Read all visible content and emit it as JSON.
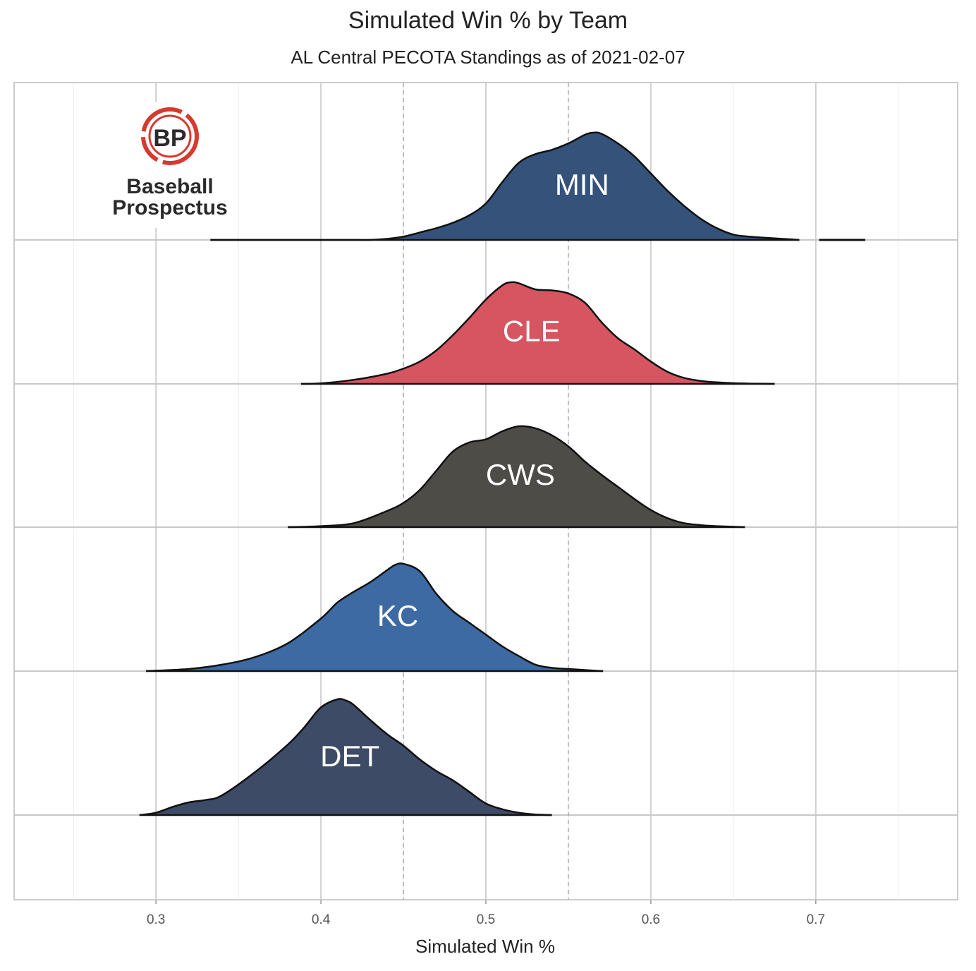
{
  "title": "Simulated Win % by Team",
  "subtitle": "AL Central PECOTA Standings as of 2021-02-07",
  "logo": {
    "mark": "BP",
    "line1": "Baseball",
    "line2": "Prospectus",
    "ring_color": "#d63a2f"
  },
  "chart_data": {
    "type": "ridgeline-density",
    "title": "Simulated Win %",
    "xlabel": "Simulated Win %",
    "ylabel": "",
    "xlim": [
      0.214,
      0.786
    ],
    "xticks": [
      0.3,
      0.4,
      0.5,
      0.6,
      0.7
    ],
    "xtick_labels": [
      "0.3",
      "0.4",
      "0.5",
      "0.6",
      "0.7"
    ],
    "reference_lines": [
      0.45,
      0.55
    ],
    "grid": true,
    "series": [
      {
        "name": "MIN",
        "color": "#34527a",
        "x": [
          0.333,
          0.35,
          0.365,
          0.38,
          0.39,
          0.4,
          0.41,
          0.42,
          0.43,
          0.44,
          0.45,
          0.46,
          0.47,
          0.48,
          0.49,
          0.5,
          0.51,
          0.52,
          0.53,
          0.54,
          0.55,
          0.56,
          0.565,
          0.57,
          0.58,
          0.59,
          0.6,
          0.61,
          0.62,
          0.63,
          0.64,
          0.65,
          0.66,
          0.67,
          0.68,
          0.69
        ],
        "density": [
          0,
          0,
          0,
          0,
          0,
          0,
          0,
          0,
          0,
          0.01,
          0.03,
          0.07,
          0.11,
          0.16,
          0.23,
          0.34,
          0.54,
          0.72,
          0.8,
          0.84,
          0.9,
          0.98,
          1.0,
          0.99,
          0.9,
          0.78,
          0.62,
          0.46,
          0.32,
          0.2,
          0.11,
          0.05,
          0.03,
          0.02,
          0.01,
          0
        ]
      },
      {
        "name": "CLE",
        "color": "#d65561",
        "x": [
          0.388,
          0.4,
          0.42,
          0.44,
          0.45,
          0.46,
          0.47,
          0.48,
          0.49,
          0.5,
          0.51,
          0.515,
          0.52,
          0.53,
          0.54,
          0.55,
          0.56,
          0.57,
          0.58,
          0.59,
          0.6,
          0.61,
          0.62,
          0.63,
          0.64,
          0.65,
          0.66,
          0.675
        ],
        "density": [
          0,
          0.005,
          0.04,
          0.1,
          0.15,
          0.22,
          0.33,
          0.48,
          0.65,
          0.83,
          0.97,
          1.0,
          0.99,
          0.93,
          0.92,
          0.89,
          0.8,
          0.61,
          0.45,
          0.34,
          0.22,
          0.12,
          0.06,
          0.03,
          0.015,
          0.007,
          0.003,
          0
        ]
      },
      {
        "name": "CWS",
        "color": "#4e4c47",
        "x": [
          0.38,
          0.4,
          0.42,
          0.44,
          0.45,
          0.46,
          0.47,
          0.48,
          0.49,
          0.5,
          0.51,
          0.52,
          0.53,
          0.54,
          0.55,
          0.56,
          0.57,
          0.58,
          0.59,
          0.6,
          0.61,
          0.62,
          0.63,
          0.64,
          0.657
        ],
        "density": [
          0,
          0.01,
          0.04,
          0.16,
          0.24,
          0.37,
          0.56,
          0.75,
          0.84,
          0.87,
          0.95,
          1.0,
          0.98,
          0.91,
          0.8,
          0.65,
          0.52,
          0.4,
          0.28,
          0.17,
          0.09,
          0.04,
          0.02,
          0.01,
          0
        ]
      },
      {
        "name": "KC",
        "color": "#3d6aa3",
        "x": [
          0.294,
          0.32,
          0.34,
          0.36,
          0.38,
          0.4,
          0.41,
          0.42,
          0.43,
          0.44,
          0.445,
          0.45,
          0.46,
          0.47,
          0.48,
          0.49,
          0.5,
          0.51,
          0.52,
          0.53,
          0.54,
          0.55,
          0.56,
          0.571
        ],
        "density": [
          0,
          0.02,
          0.06,
          0.13,
          0.26,
          0.49,
          0.64,
          0.74,
          0.83,
          0.94,
          0.99,
          1.0,
          0.93,
          0.72,
          0.56,
          0.45,
          0.34,
          0.23,
          0.14,
          0.06,
          0.03,
          0.02,
          0.01,
          0
        ]
      },
      {
        "name": "DET",
        "color": "#3d4b66",
        "x": [
          0.29,
          0.3,
          0.31,
          0.32,
          0.33,
          0.34,
          0.36,
          0.38,
          0.39,
          0.4,
          0.41,
          0.415,
          0.42,
          0.43,
          0.44,
          0.45,
          0.46,
          0.47,
          0.48,
          0.49,
          0.5,
          0.51,
          0.52,
          0.53,
          0.54
        ],
        "density": [
          0,
          0.02,
          0.07,
          0.11,
          0.13,
          0.17,
          0.37,
          0.61,
          0.76,
          0.93,
          1.0,
          0.99,
          0.95,
          0.82,
          0.7,
          0.6,
          0.48,
          0.38,
          0.3,
          0.2,
          0.1,
          0.05,
          0.02,
          0.005,
          0
        ]
      }
    ],
    "extra_tail": {
      "series": "MIN",
      "x": [
        0.702,
        0.73
      ]
    }
  }
}
